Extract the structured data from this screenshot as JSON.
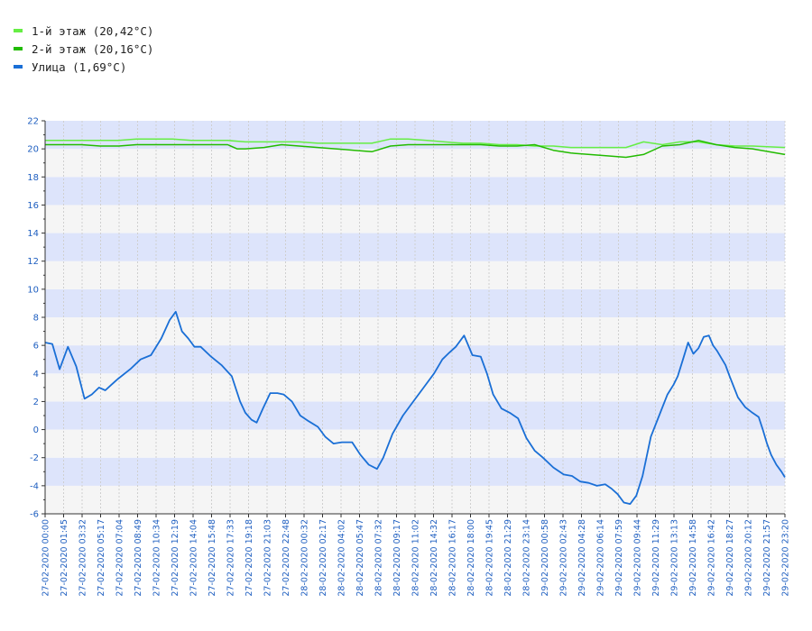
{
  "legend": {
    "items": [
      {
        "label": "1-й этаж (20,42°C)",
        "color": "#66ee44"
      },
      {
        "label": "2-й этаж (20,16°C)",
        "color": "#22bb00"
      },
      {
        "label": "Улица (1,69°C)",
        "color": "#1a6fd6"
      }
    ]
  },
  "chart_data": {
    "type": "line",
    "title": "",
    "xlabel": "",
    "ylabel": "",
    "ylim": [
      -6,
      22
    ],
    "yticks": [
      -6,
      -4,
      -2,
      0,
      2,
      4,
      6,
      8,
      10,
      12,
      14,
      16,
      18,
      20,
      22
    ],
    "grid": true,
    "legend_position": "top-left",
    "colors": {
      "band_a": "#dde4fb",
      "band_b": "#f5f5f5",
      "axis": "#333333",
      "tick_label": "#1f5fc0"
    },
    "x_tick_labels": [
      "27-02-2020 00:00",
      "27-02-2020 01:45",
      "27-02-2020 03:32",
      "27-02-2020 05:17",
      "27-02-2020 07:04",
      "27-02-2020 08:49",
      "27-02-2020 10:34",
      "27-02-2020 12:19",
      "27-02-2020 14:04",
      "27-02-2020 15:48",
      "27-02-2020 17:33",
      "27-02-2020 19:18",
      "27-02-2020 21:03",
      "27-02-2020 22:48",
      "28-02-2020 00:32",
      "28-02-2020 02:17",
      "28-02-2020 04:02",
      "28-02-2020 05:47",
      "28-02-2020 07:32",
      "28-02-2020 09:17",
      "28-02-2020 11:02",
      "28-02-2020 14:32",
      "28-02-2020 16:17",
      "28-02-2020 18:00",
      "28-02-2020 19:45",
      "28-02-2020 21:29",
      "28-02-2020 23:14",
      "29-02-2020 00:58",
      "29-02-2020 02:43",
      "29-02-2020 04:28",
      "29-02-2020 06:14",
      "29-02-2020 07:59",
      "29-02-2020 09:44",
      "29-02-2020 11:29",
      "29-02-2020 13:13",
      "29-02-2020 14:58",
      "29-02-2020 16:42",
      "29-02-2020 18:27",
      "29-02-2020 20:12",
      "29-02-2020 21:57",
      "29-02-2020 23:20"
    ],
    "series": [
      {
        "name": "1-й этаж (20,42°C)",
        "color": "#66ee44",
        "x": [
          0,
          1.75,
          3.5,
          5.3,
          7.1,
          8.8,
          10.6,
          12.3,
          14.1,
          15.8,
          17.6,
          19.3,
          21.1,
          22.8,
          24.5,
          26.3,
          28,
          29.8,
          31.5,
          33.3,
          35,
          36.8,
          38.5,
          40.3,
          42,
          43.8,
          45.5,
          47.2,
          49,
          50.7,
          52.5,
          54.2,
          56,
          57.7,
          59.5,
          61.2,
          63,
          64.7,
          66.5,
          68.2,
          71.33
        ],
        "y": [
          20.6,
          20.6,
          20.6,
          20.6,
          20.6,
          20.7,
          20.7,
          20.7,
          20.6,
          20.6,
          20.6,
          20.5,
          20.5,
          20.5,
          20.5,
          20.4,
          20.4,
          20.4,
          20.4,
          20.7,
          20.7,
          20.6,
          20.5,
          20.4,
          20.4,
          20.3,
          20.3,
          20.2,
          20.2,
          20.1,
          20.1,
          20.1,
          20.1,
          20.5,
          20.3,
          20.5,
          20.5,
          20.3,
          20.2,
          20.2,
          20.1
        ]
      },
      {
        "name": "2-й этаж (20,16°C)",
        "color": "#22bb00",
        "x": [
          0,
          1.75,
          3.5,
          5.3,
          7.1,
          8.8,
          10.6,
          12.3,
          14.1,
          15.8,
          17.6,
          18.5,
          19.3,
          21.1,
          22.8,
          24.5,
          26.3,
          28,
          29.8,
          31.5,
          33.3,
          35,
          36.8,
          38.5,
          40.3,
          42,
          43.8,
          45.5,
          47.2,
          49,
          50.7,
          52.5,
          54.2,
          56,
          57.7,
          59.5,
          61.2,
          63,
          64.7,
          66.5,
          68.2,
          71.33
        ],
        "y": [
          20.3,
          20.3,
          20.3,
          20.2,
          20.2,
          20.3,
          20.3,
          20.3,
          20.3,
          20.3,
          20.3,
          20.0,
          20.0,
          20.1,
          20.3,
          20.2,
          20.1,
          20.0,
          19.9,
          19.8,
          20.2,
          20.3,
          20.3,
          20.3,
          20.3,
          20.3,
          20.2,
          20.2,
          20.3,
          19.9,
          19.7,
          19.6,
          19.5,
          19.4,
          19.6,
          20.2,
          20.3,
          20.6,
          20.3,
          20.1,
          20.0,
          19.6
        ]
      },
      {
        "name": "Улица (1,69°C)",
        "color": "#1a6fd6",
        "x": [
          0,
          0.7,
          1.4,
          2.2,
          3.0,
          3.8,
          4.5,
          5.2,
          5.8,
          6.4,
          7.0,
          8.2,
          9.2,
          10.2,
          11.2,
          12.0,
          12.6,
          13.2,
          13.8,
          14.4,
          15.0,
          16.0,
          17.0,
          18.0,
          18.8,
          19.3,
          19.9,
          20.4,
          21.0,
          21.7,
          22.4,
          23.0,
          23.8,
          24.6,
          25.4,
          26.3,
          27.0,
          27.8,
          28.6,
          29.6,
          30.4,
          31.2,
          32.0,
          32.6,
          33.5,
          34.5,
          35.5,
          36.5,
          37.5,
          38.3,
          39.0,
          39.6,
          40.4,
          41.2,
          42.0,
          42.6,
          43.2,
          44.0,
          44.8,
          45.6,
          46.4,
          47.2,
          48.0,
          49.0,
          50.0,
          50.8,
          51.6,
          52.4,
          53.2,
          54.0,
          54.6,
          55.2,
          55.8,
          56.4,
          57.0,
          57.6,
          58.4,
          59.2,
          60.0,
          60.6,
          61.0,
          61.5,
          62.0,
          62.5,
          63.0,
          63.5,
          64.0,
          64.4,
          64.8,
          65.2,
          65.6,
          66.0,
          66.8,
          67.5,
          68.2,
          68.8,
          69.2,
          69.6,
          70.0,
          70.5,
          71.0,
          71.33
        ],
        "y": [
          6.2,
          6.1,
          4.3,
          5.9,
          4.5,
          2.2,
          2.5,
          3.0,
          2.8,
          3.2,
          3.6,
          4.3,
          5.0,
          5.3,
          6.5,
          7.8,
          8.4,
          7.0,
          6.5,
          5.9,
          5.9,
          5.2,
          4.6,
          3.8,
          2.0,
          1.2,
          0.7,
          0.5,
          1.5,
          2.6,
          2.6,
          2.5,
          2.0,
          1.0,
          0.6,
          0.2,
          -0.5,
          -1.0,
          -0.9,
          -0.9,
          -1.8,
          -2.5,
          -2.8,
          -2.0,
          -0.3,
          1.0,
          2.0,
          3.0,
          4.0,
          5.0,
          5.5,
          5.9,
          6.7,
          5.3,
          5.2,
          4.0,
          2.5,
          1.5,
          1.2,
          0.8,
          -0.6,
          -1.5,
          -2.0,
          -2.7,
          -3.2,
          -3.3,
          -3.7,
          -3.8,
          -4.0,
          -3.9,
          -4.2,
          -4.6,
          -5.2,
          -5.3,
          -4.7,
          -3.3,
          -0.5,
          1.0,
          2.5,
          3.2,
          3.8,
          5.0,
          6.2,
          5.4,
          5.8,
          6.6,
          6.7,
          6.0,
          5.6,
          5.1,
          4.6,
          3.8,
          2.3,
          1.6,
          1.2,
          0.9,
          0.0,
          -1.0,
          -1.8,
          -2.5,
          -3.0,
          -3.4
        ]
      }
    ]
  }
}
